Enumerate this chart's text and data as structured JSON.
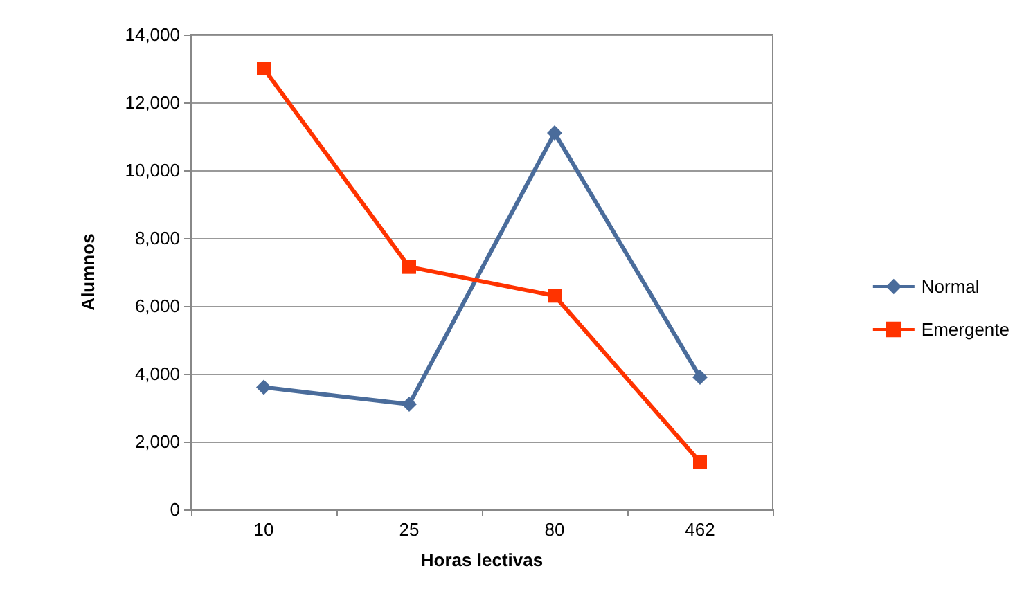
{
  "chart_data": {
    "type": "line",
    "xlabel": "Horas lectivas",
    "ylabel": "Alumnos",
    "categories": [
      "10",
      "25",
      "80",
      "462"
    ],
    "series": [
      {
        "name": "Normal",
        "color": "#4a6c9b",
        "marker": "diamond",
        "values": [
          3600,
          3100,
          11100,
          3900
        ]
      },
      {
        "name": "Emergente",
        "color": "#ff3300",
        "marker": "square",
        "values": [
          13000,
          7150,
          6300,
          1400
        ]
      }
    ],
    "ylim": [
      0,
      14000
    ],
    "yticks": [
      0,
      {
        "value": 2000,
        "label": "2,000"
      },
      {
        "value": 4000,
        "label": "4,000"
      },
      {
        "value": 6000,
        "label": "6,000"
      },
      {
        "value": 8000,
        "label": "8,000"
      },
      {
        "value": 10000,
        "label": "10,000"
      },
      {
        "value": 12000,
        "label": "12,000"
      },
      {
        "value": 14000,
        "label": "14,000"
      }
    ],
    "grid": "y",
    "legend": "right"
  }
}
